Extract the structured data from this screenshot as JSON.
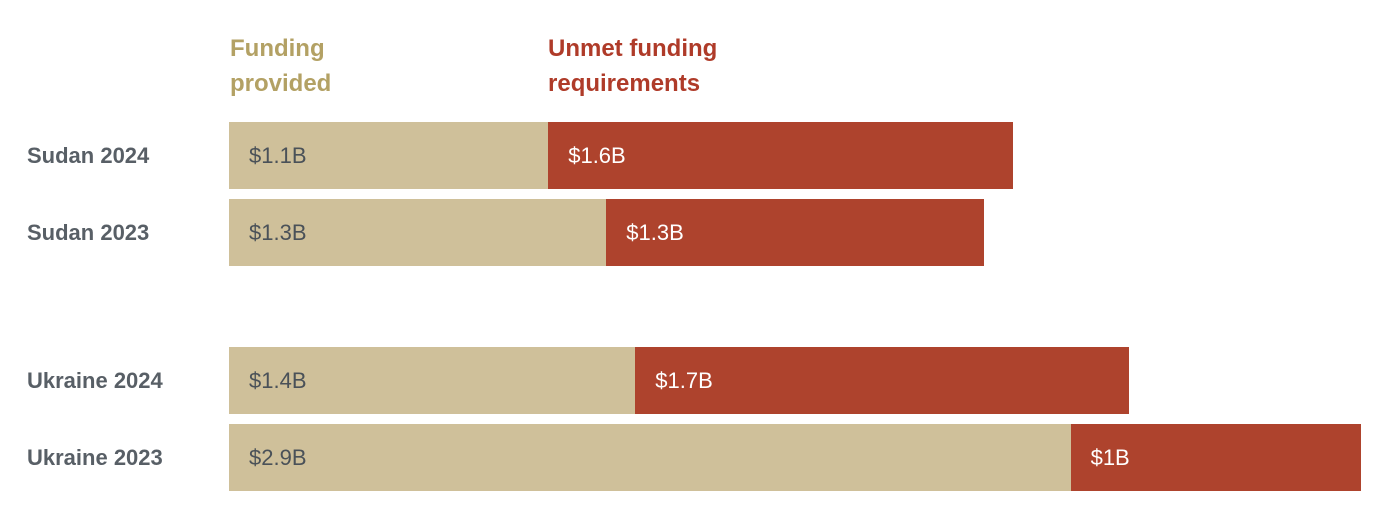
{
  "legend": {
    "provided_label": "Funding provided",
    "unmet_label": "Unmet funding requirements",
    "provided_color": "#B3A164",
    "unmet_color": "#AF3B29"
  },
  "row_label_color": "#585F66",
  "chart_data": {
    "type": "bar",
    "orientation": "horizontal",
    "stacked": true,
    "grid": false,
    "legend_position": "top",
    "xlim": [
      0,
      3.98
    ],
    "categories": [
      "Sudan 2024",
      "Sudan 2023",
      "Ukraine 2024",
      "Ukraine 2023"
    ],
    "series": [
      {
        "name": "Funding provided",
        "color": "#CFC09A",
        "label_color": "#4A5158",
        "values": [
          1.1,
          1.3,
          1.4,
          2.9
        ],
        "labels": [
          "$1.1B",
          "$1.3B",
          "$1.4B",
          "$2.9B"
        ]
      },
      {
        "name": "Unmet funding requirements",
        "color": "#AE432D",
        "label_color": "#FFFFFF",
        "values": [
          1.6,
          1.3,
          1.7,
          1.0
        ],
        "labels": [
          "$1.6B",
          "$1.3B",
          "$1.7B",
          "$1B"
        ]
      }
    ]
  }
}
